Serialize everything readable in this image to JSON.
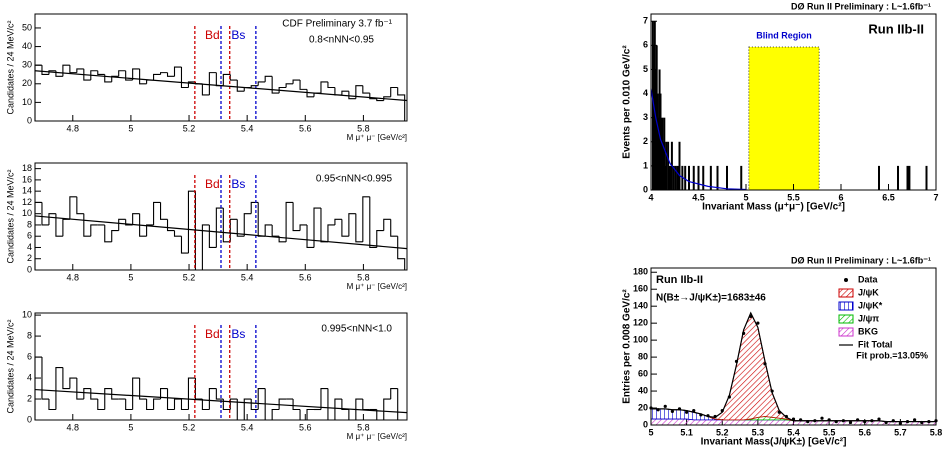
{
  "chart_data": [
    {
      "type": "histogram",
      "ylabel": "Candidates / 24 MeV/c²",
      "xlabel": "M μ⁺ μ⁻ [GeV/c²]",
      "annotations": [
        "CDF Preliminary 3.7 fb⁻¹",
        "0.8<nNN<0.95"
      ],
      "bins": [
        4.67,
        4.694,
        4.718,
        4.742,
        4.766,
        4.79,
        4.814,
        4.838,
        4.862,
        4.886,
        4.91,
        4.934,
        4.958,
        4.982,
        5.006,
        5.03,
        5.054,
        5.078,
        5.102,
        5.126,
        5.15,
        5.174,
        5.198,
        5.222,
        5.246,
        5.27,
        5.294,
        5.318,
        5.342,
        5.366,
        5.39,
        5.414,
        5.438,
        5.462,
        5.486,
        5.51,
        5.534,
        5.558,
        5.582,
        5.606,
        5.63,
        5.654,
        5.678,
        5.702,
        5.726,
        5.75,
        5.774,
        5.798,
        5.822,
        5.846,
        5.87,
        5.894,
        5.918,
        5.942
      ],
      "values": [
        30,
        25,
        27,
        24,
        30,
        26,
        28,
        22,
        27,
        25,
        21,
        24,
        27,
        22,
        28,
        20,
        22,
        25,
        26,
        24,
        29,
        18,
        21,
        20,
        14,
        26,
        19,
        25,
        22,
        16,
        18,
        19,
        21,
        24,
        15,
        18,
        20,
        22,
        17,
        13,
        15,
        21,
        18,
        14,
        16,
        12,
        19,
        15,
        12,
        11,
        13,
        18,
        14
      ],
      "curve": {
        "x": [
          4.67,
          5.95
        ],
        "values": [
          27,
          11
        ]
      },
      "windows": [
        {
          "name": "Bd",
          "color": "#cc0000",
          "x": [
            5.22,
            5.34
          ]
        },
        {
          "name": "Bs",
          "color": "#0000cc",
          "x": [
            5.31,
            5.43
          ]
        }
      ],
      "xlim": [
        4.67,
        5.95
      ],
      "ylim": [
        0,
        57.5
      ],
      "xticks": [
        4.8,
        5,
        5.2,
        5.4,
        5.6,
        5.8
      ],
      "yticks": [
        0,
        10,
        20,
        30,
        40,
        50
      ]
    },
    {
      "type": "histogram",
      "ylabel": "Candidates / 24 MeV/c²",
      "xlabel": "M μ⁺ μ⁻ [GeV/c²]",
      "annotations": [
        "0.95<nNN<0.995"
      ],
      "bins": [
        4.67,
        4.694,
        4.718,
        4.742,
        4.766,
        4.79,
        4.814,
        4.838,
        4.862,
        4.886,
        4.91,
        4.934,
        4.958,
        4.982,
        5.006,
        5.03,
        5.054,
        5.078,
        5.102,
        5.126,
        5.15,
        5.174,
        5.198,
        5.222,
        5.246,
        5.27,
        5.294,
        5.318,
        5.342,
        5.366,
        5.39,
        5.414,
        5.438,
        5.462,
        5.486,
        5.51,
        5.534,
        5.558,
        5.582,
        5.606,
        5.63,
        5.654,
        5.678,
        5.702,
        5.726,
        5.75,
        5.774,
        5.798,
        5.822,
        5.846,
        5.87,
        5.894,
        5.918,
        5.942
      ],
      "values": [
        12,
        8,
        10,
        6,
        9,
        13,
        10,
        6,
        8,
        8,
        5,
        7,
        9,
        8,
        10,
        6,
        8,
        12,
        9,
        7,
        6,
        3,
        14,
        0,
        8,
        4,
        11,
        5,
        9,
        6,
        10,
        12,
        6,
        8,
        6,
        5,
        12,
        7,
        8,
        4,
        11,
        5,
        8,
        9,
        6,
        10,
        5,
        13,
        4,
        7,
        9,
        6,
        2
      ],
      "curve": {
        "x": [
          4.67,
          5.95
        ],
        "values": [
          9.6,
          3.8
        ]
      },
      "windows": [
        {
          "name": "Bd",
          "color": "#cc0000",
          "x": [
            5.22,
            5.34
          ]
        },
        {
          "name": "Bs",
          "color": "#0000cc",
          "x": [
            5.31,
            5.43
          ]
        }
      ],
      "xlim": [
        4.67,
        5.95
      ],
      "ylim": [
        0,
        19
      ],
      "xticks": [
        4.8,
        5,
        5.2,
        5.4,
        5.6,
        5.8
      ],
      "yticks": [
        0,
        2,
        4,
        6,
        8,
        10,
        12,
        14,
        16,
        18
      ]
    },
    {
      "type": "histogram",
      "ylabel": "Candidates / 24 MeV/c²",
      "xlabel": "M μ⁺ μ⁻ [GeV/c²]",
      "annotations": [
        "0.995<nNN<1.0"
      ],
      "bins": [
        4.67,
        4.694,
        4.718,
        4.742,
        4.766,
        4.79,
        4.814,
        4.838,
        4.862,
        4.886,
        4.91,
        4.934,
        4.958,
        4.982,
        5.006,
        5.03,
        5.054,
        5.078,
        5.102,
        5.126,
        5.15,
        5.174,
        5.198,
        5.222,
        5.246,
        5.27,
        5.294,
        5.318,
        5.342,
        5.366,
        5.39,
        5.414,
        5.438,
        5.462,
        5.486,
        5.51,
        5.534,
        5.558,
        5.582,
        5.606,
        5.63,
        5.654,
        5.678,
        5.702,
        5.726,
        5.75,
        5.774,
        5.798,
        5.822,
        5.846,
        5.87,
        5.894,
        5.918,
        5.942
      ],
      "values": [
        6,
        2,
        1,
        5,
        3,
        4,
        2,
        3,
        2,
        1,
        3,
        2,
        2,
        1,
        4,
        2,
        1,
        2,
        3,
        1,
        2,
        1,
        4,
        2,
        1,
        3,
        2,
        1,
        2,
        0,
        2,
        1,
        3,
        0,
        1,
        2,
        2,
        1,
        0,
        1,
        1,
        3,
        0,
        2,
        1,
        0,
        2,
        1,
        1,
        0,
        2,
        3,
        0
      ],
      "curve": {
        "x": [
          4.67,
          5.95
        ],
        "values": [
          2.9,
          0.7
        ]
      },
      "windows": [
        {
          "name": "Bd",
          "color": "#cc0000",
          "x": [
            5.22,
            5.34
          ]
        },
        {
          "name": "Bs",
          "color": "#0000cc",
          "x": [
            5.31,
            5.43
          ]
        }
      ],
      "xlim": [
        4.67,
        5.95
      ],
      "ylim": [
        0,
        10.2
      ],
      "xticks": [
        4.8,
        5,
        5.2,
        5.4,
        5.6,
        5.8
      ],
      "yticks": [
        0,
        2,
        4,
        6,
        8,
        10
      ]
    },
    {
      "type": "spike",
      "title": "DØ Run II Preliminary : L~1.6fb⁻¹",
      "ylabel": "Events per 0.010 GeV/c²",
      "xlabel": "Invariant Mass (μ⁺μ⁻) [GeV/c²]",
      "annotations": [
        "Run IIb-II"
      ],
      "blind_region": {
        "label": "Blind Region",
        "x": [
          5.03,
          5.77
        ],
        "color": "#ffff00"
      },
      "x": [
        4.02,
        4.03,
        4.04,
        4.05,
        4.06,
        4.07,
        4.08,
        4.09,
        4.1,
        4.11,
        4.12,
        4.13,
        4.14,
        4.15,
        4.16,
        4.18,
        4.2,
        4.22,
        4.24,
        4.26,
        4.28,
        4.3,
        4.33,
        4.36,
        4.4,
        4.45,
        4.5,
        4.55,
        4.63,
        4.7,
        4.8,
        4.95,
        6.4,
        6.6,
        6.7,
        6.72,
        6.9
      ],
      "values": [
        7,
        6,
        7,
        5,
        6,
        4,
        3,
        5,
        4,
        2,
        3,
        2,
        3,
        1,
        2,
        2,
        1,
        2,
        1,
        1,
        1,
        2,
        1,
        1,
        1,
        1,
        1,
        1,
        1,
        1,
        1,
        1,
        1,
        1,
        1,
        1,
        1
      ],
      "curve": {
        "x": [
          4,
          4.05,
          4.1,
          4.2,
          4.3,
          4.4,
          4.6,
          4.8,
          5.0
        ],
        "values": [
          4.2,
          3.0,
          2.1,
          1.1,
          0.6,
          0.35,
          0.15,
          0.05,
          0.02
        ],
        "color": "#0000cc"
      },
      "xlim": [
        4,
        7
      ],
      "ylim": [
        0,
        7.3
      ],
      "xticks": [
        4,
        4.5,
        5,
        5.5,
        6,
        6.5,
        7
      ],
      "yticks": [
        0,
        1,
        2,
        3,
        4,
        5,
        6,
        7
      ]
    },
    {
      "type": "stacked_area",
      "title": "DØ Run II Preliminary : L~1.6fb⁻¹",
      "ylabel": "Entries per 0.008 GeV/c²",
      "xlabel": "Invariant Mass(J/ψK±) [GeV/c²]",
      "annotations": [
        "Run IIb-II",
        "N(B±→J/ψK±)=1683±46",
        "Fit prob.=13.05%"
      ],
      "x": [
        5,
        5.02,
        5.04,
        5.06,
        5.08,
        5.1,
        5.12,
        5.14,
        5.16,
        5.18,
        5.2,
        5.22,
        5.24,
        5.26,
        5.28,
        5.3,
        5.32,
        5.34,
        5.36,
        5.38,
        5.4,
        5.42,
        5.44,
        5.46,
        5.48,
        5.5,
        5.52,
        5.54,
        5.56,
        5.58,
        5.6,
        5.62,
        5.64,
        5.66,
        5.68,
        5.7,
        5.72,
        5.74,
        5.76,
        5.78,
        5.8
      ],
      "series": [
        {
          "name": "BKG",
          "color": "#cc33cc",
          "values": [
            7,
            7,
            7,
            7,
            7,
            7,
            6,
            6,
            6,
            6,
            6,
            6,
            6,
            6,
            6,
            6,
            6,
            6,
            6,
            6,
            5,
            5,
            5,
            5,
            5,
            5,
            5,
            5,
            5,
            5,
            5,
            5,
            5,
            4,
            4,
            4,
            4,
            4,
            4,
            4,
            4
          ]
        },
        {
          "name": "J/ψK*",
          "color": "#0000cc",
          "values": [
            12,
            12,
            12,
            11,
            11,
            10,
            9,
            7,
            4,
            1,
            0,
            0,
            0,
            0,
            0,
            0,
            0,
            0,
            0,
            0,
            0,
            0,
            0,
            0,
            0,
            0,
            0,
            0,
            0,
            0,
            0,
            0,
            0,
            0,
            0,
            0,
            0,
            0,
            0,
            0,
            0
          ]
        },
        {
          "name": "J/ψπ",
          "color": "#00bb00",
          "values": [
            0,
            0,
            0,
            0,
            0,
            0,
            0,
            0,
            0,
            0,
            0,
            0,
            0,
            0,
            1,
            3,
            4,
            3,
            2,
            1,
            0,
            0,
            0,
            0,
            0,
            0,
            0,
            0,
            0,
            0,
            0,
            0,
            0,
            0,
            0,
            0,
            0,
            0,
            0,
            0,
            0
          ]
        },
        {
          "name": "J/ψK",
          "color": "#cc0000",
          "values": [
            0,
            0,
            0,
            0,
            0,
            0,
            0,
            0,
            0,
            2,
            9,
            29,
            65,
            106,
            125,
            106,
            65,
            29,
            9,
            2,
            0,
            0,
            0,
            0,
            0,
            0,
            0,
            0,
            0,
            0,
            0,
            0,
            0,
            0,
            0,
            0,
            0,
            0,
            0,
            0,
            0
          ]
        }
      ],
      "data": {
        "name": "Data",
        "values": [
          20,
          18,
          22,
          16,
          19,
          15,
          17,
          12,
          11,
          10,
          17,
          33,
          75,
          108,
          128,
          120,
          72,
          40,
          15,
          10,
          7,
          6,
          4,
          5,
          8,
          6,
          4,
          5,
          3,
          6,
          4,
          5,
          7,
          3,
          5,
          2,
          4,
          6,
          3,
          4,
          5
        ]
      },
      "total": {
        "name": "Fit Total",
        "values": [
          19,
          19,
          19,
          18,
          18,
          17,
          15,
          13,
          10,
          9,
          15,
          35,
          71,
          112,
          132,
          115,
          75,
          38,
          17,
          9,
          5,
          5,
          5,
          5,
          5,
          5,
          5,
          5,
          5,
          5,
          5,
          5,
          5,
          4,
          4,
          4,
          4,
          4,
          4,
          4,
          4
        ]
      },
      "xlim": [
        5,
        5.8
      ],
      "ylim": [
        0,
        185
      ],
      "xticks": [
        5,
        5.1,
        5.2,
        5.3,
        5.4,
        5.5,
        5.6,
        5.7,
        5.8
      ],
      "yticks": [
        0,
        20,
        40,
        60,
        80,
        100,
        120,
        140,
        160,
        180
      ]
    }
  ]
}
